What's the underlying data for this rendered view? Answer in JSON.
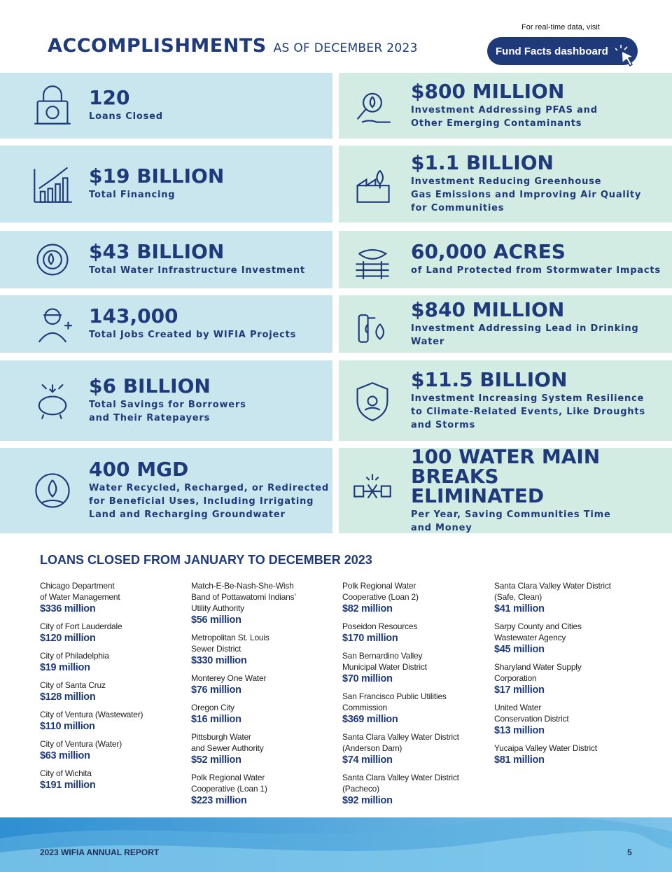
{
  "header": {
    "title": "ACCOMPLISHMENTS",
    "subtitle": "AS OF DECEMBER 2023",
    "link_note": "For real-time data, visit",
    "button": "Fund Facts dashboard"
  },
  "accomplishments": [
    {
      "left": {
        "figure": "120",
        "description": [
          "Loans Closed"
        ]
      },
      "right": {
        "figure": "$800 MILLION",
        "description": [
          "Investment Addressing PFAS and",
          "Other Emerging Contaminants"
        ]
      }
    },
    {
      "left": {
        "figure": "$19 BILLION",
        "description": [
          "Total Financing"
        ]
      },
      "right": {
        "figure": "$1.1 BILLION",
        "description": [
          "Investment Reducing Greenhouse",
          "Gas Emissions and Improving Air Quality",
          "for Communities"
        ]
      }
    },
    {
      "left": {
        "figure": "$43 BILLION",
        "description": [
          "Total Water Infrastructure Investment"
        ]
      },
      "right": {
        "figure": "60,000 ACRES",
        "description": [
          "of Land Protected from Stormwater Impacts"
        ]
      }
    },
    {
      "left": {
        "figure": "143,000",
        "description": [
          "Total Jobs Created by WIFIA Projects"
        ]
      },
      "right": {
        "figure": "$840 MILLION",
        "description": [
          "Investment Addressing Lead in Drinking Water"
        ]
      }
    },
    {
      "left": {
        "figure": "$6 BILLION",
        "description": [
          "Total Savings for Borrowers",
          "and Their Ratepayers"
        ]
      },
      "right": {
        "figure": "$11.5 BILLION",
        "description": [
          "Investment Increasing System Resilience",
          "to Climate-Related Events, Like Droughts",
          "and Storms"
        ]
      }
    },
    {
      "left": {
        "figure": "400 MGD",
        "description": [
          "Water Recycled, Recharged, or Redirected",
          "for Beneficial Uses, Including Irrigating",
          "Land and Recharging Groundwater"
        ]
      },
      "right": {
        "figure": "100 WATER MAIN BREAKS ELIMINATED",
        "description": [
          "Per Year, Saving Communities Time",
          "and Money"
        ]
      }
    }
  ],
  "loans": {
    "title": "LOANS CLOSED FROM JANUARY TO DECEMBER 2023",
    "columns": [
      [
        {
          "name": [
            "Chicago Department",
            "of Water Management"
          ],
          "amount": "$336 million"
        },
        {
          "name": [
            "City of Fort Lauderdale"
          ],
          "amount": "$120 million"
        },
        {
          "name": [
            "City of Philadelphia"
          ],
          "amount": "$19 million"
        },
        {
          "name": [
            "City of Santa Cruz"
          ],
          "amount": "$128 million"
        },
        {
          "name": [
            "City of Ventura (Wastewater)"
          ],
          "amount": "$110 million"
        },
        {
          "name": [
            "City of Ventura (Water)"
          ],
          "amount": "$63 million"
        },
        {
          "name": [
            "City of Wichita"
          ],
          "amount": "$191 million"
        }
      ],
      [
        {
          "name": [
            "Match-E-Be-Nash-She-Wish",
            "Band of Pottawatomi Indians’",
            "Utility Authority"
          ],
          "amount": "$56 million"
        },
        {
          "name": [
            "Metropolitan St. Louis",
            "Sewer District"
          ],
          "amount": "$330 million"
        },
        {
          "name": [
            "Monterey One Water"
          ],
          "amount": "$76 million"
        },
        {
          "name": [
            "Oregon City"
          ],
          "amount": "$16 million"
        },
        {
          "name": [
            "Pittsburgh Water",
            "and Sewer Authority"
          ],
          "amount": "$52 million"
        },
        {
          "name": [
            "Polk Regional Water",
            "Cooperative (Loan 1)"
          ],
          "amount": "$223 million"
        }
      ],
      [
        {
          "name": [
            "Polk Regional Water",
            "Cooperative (Loan 2)"
          ],
          "amount": "$82 million"
        },
        {
          "name": [
            "Poseidon Resources"
          ],
          "amount": "$170 million"
        },
        {
          "name": [
            "San Bernardino Valley",
            "Municipal Water District"
          ],
          "amount": "$70 million"
        },
        {
          "name": [
            "San Francisco Public Utilities",
            "Commission"
          ],
          "amount": "$369 million"
        },
        {
          "name": [
            "Santa Clara Valley Water District",
            "(Anderson Dam)"
          ],
          "amount": "$74 million"
        },
        {
          "name": [
            "Santa Clara Valley Water District",
            "(Pacheco)"
          ],
          "amount": "$92 million"
        }
      ],
      [
        {
          "name": [
            "Santa Clara Valley Water District",
            "(Safe, Clean)"
          ],
          "amount": "$41 million"
        },
        {
          "name": [
            "Sarpy County and Cities",
            "Wastewater Agency"
          ],
          "amount": "$45 million"
        },
        {
          "name": [
            "Sharyland Water Supply",
            "Corporation"
          ],
          "amount": "$17 million"
        },
        {
          "name": [
            "United Water",
            "Conservation District"
          ],
          "amount": "$13 million"
        },
        {
          "name": [
            "Yucaipa Valley Water District"
          ],
          "amount": "$81 million"
        }
      ]
    ]
  },
  "footer": {
    "report": "2023 WIFIA ANNUAL REPORT",
    "page": "5"
  }
}
